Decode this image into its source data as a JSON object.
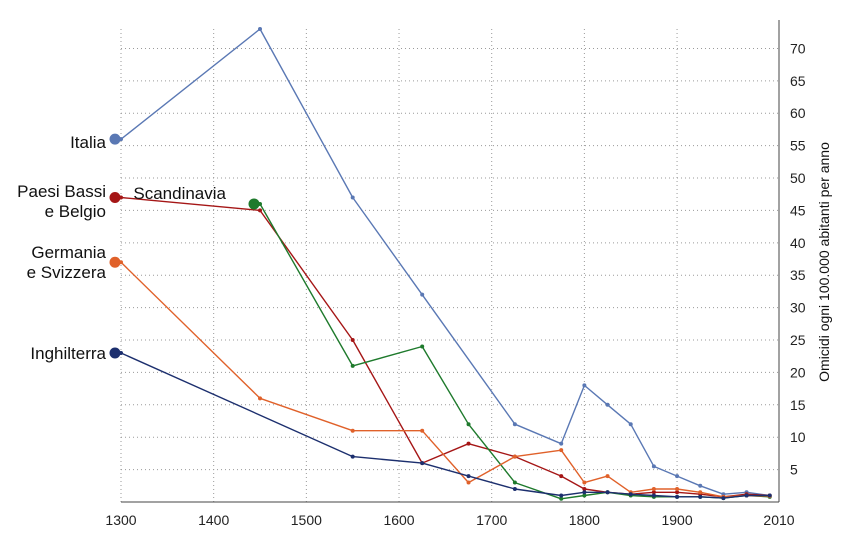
{
  "chart_data": {
    "type": "line",
    "title": "",
    "xlabel": "",
    "ylabel": "Omicidi ogni 100.000 abitanti per anno",
    "xlim": [
      1300,
      2010
    ],
    "ylim": [
      0,
      73
    ],
    "x_ticks": [
      1300,
      1400,
      1500,
      1600,
      1700,
      1800,
      1900,
      2010
    ],
    "y_ticks": [
      5,
      10,
      15,
      20,
      25,
      30,
      35,
      40,
      45,
      50,
      55,
      60,
      65,
      70
    ],
    "y_axis_side": "right",
    "grid": true,
    "legend": "direct labels",
    "series": [
      {
        "name": "Italia",
        "color": "#5a78b4",
        "label_lines": [
          "Italia"
        ],
        "points": [
          [
            1300,
            56
          ],
          [
            1450,
            73
          ],
          [
            1550,
            47
          ],
          [
            1625,
            32
          ],
          [
            1725,
            12
          ],
          [
            1775,
            9
          ],
          [
            1800,
            18
          ],
          [
            1825,
            15
          ],
          [
            1850,
            12
          ],
          [
            1875,
            5.5
          ],
          [
            1900,
            4
          ],
          [
            1925,
            2.5
          ],
          [
            1950,
            1.2
          ],
          [
            1975,
            1.5
          ],
          [
            2000,
            1
          ]
        ]
      },
      {
        "name": "Paesi Bassi e Belgio",
        "color": "#a51616",
        "label_lines": [
          "Paesi Bassi",
          "e Belgio"
        ],
        "points": [
          [
            1300,
            47
          ],
          [
            1450,
            45
          ],
          [
            1550,
            25
          ],
          [
            1625,
            6
          ],
          [
            1675,
            9
          ],
          [
            1725,
            7
          ],
          [
            1775,
            4
          ],
          [
            1800,
            2
          ],
          [
            1825,
            1.5
          ],
          [
            1850,
            1.2
          ],
          [
            1875,
            1.5
          ],
          [
            1900,
            1.5
          ],
          [
            1925,
            1.2
          ],
          [
            1950,
            0.8
          ],
          [
            1975,
            1.2
          ],
          [
            2000,
            1
          ]
        ]
      },
      {
        "name": "Scandinavia",
        "color": "#1e7a2c",
        "label_lines": [
          "Scandinavia"
        ],
        "points": [
          [
            1450,
            46
          ],
          [
            1550,
            21
          ],
          [
            1625,
            24
          ],
          [
            1675,
            12
          ],
          [
            1725,
            3
          ],
          [
            1775,
            0.5
          ],
          [
            1800,
            1
          ],
          [
            1825,
            1.5
          ],
          [
            1850,
            1
          ],
          [
            1875,
            0.8
          ],
          [
            1900,
            0.8
          ],
          [
            1925,
            0.8
          ],
          [
            1950,
            0.6
          ],
          [
            1975,
            1
          ],
          [
            2000,
            0.8
          ]
        ]
      },
      {
        "name": "Germania e Svizzera",
        "color": "#e0612a",
        "label_lines": [
          "Germania",
          "e Svizzera"
        ],
        "points": [
          [
            1300,
            37
          ],
          [
            1450,
            16
          ],
          [
            1550,
            11
          ],
          [
            1625,
            11
          ],
          [
            1675,
            3
          ],
          [
            1725,
            7
          ],
          [
            1775,
            8
          ],
          [
            1800,
            3
          ],
          [
            1825,
            4
          ],
          [
            1850,
            1.5
          ],
          [
            1875,
            2
          ],
          [
            1900,
            2
          ],
          [
            1925,
            1.5
          ],
          [
            1950,
            0.8
          ],
          [
            1975,
            1
          ],
          [
            2000,
            0.9
          ]
        ]
      },
      {
        "name": "Inghilterra",
        "color": "#1c2f6e",
        "label_lines": [
          "Inghilterra"
        ],
        "points": [
          [
            1300,
            23
          ],
          [
            1550,
            7
          ],
          [
            1625,
            6
          ],
          [
            1675,
            4
          ],
          [
            1725,
            2
          ],
          [
            1775,
            1
          ],
          [
            1800,
            1.5
          ],
          [
            1825,
            1.5
          ],
          [
            1850,
            1.2
          ],
          [
            1875,
            1
          ],
          [
            1900,
            0.8
          ],
          [
            1925,
            0.8
          ],
          [
            1950,
            0.6
          ],
          [
            1975,
            1
          ],
          [
            2000,
            1
          ]
        ]
      }
    ]
  }
}
